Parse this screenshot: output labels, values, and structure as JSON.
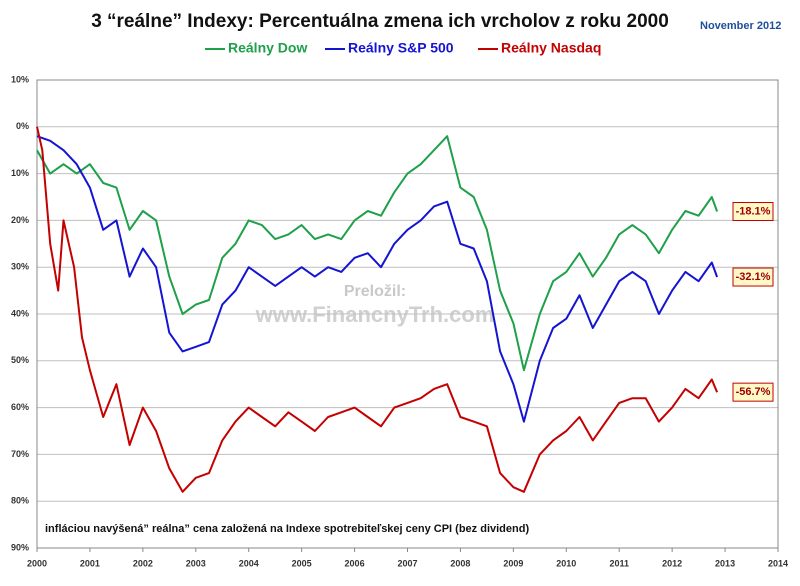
{
  "chart_data": {
    "type": "line",
    "title": "3 “reálne” Indexy: Percentuálna zmena ich vrcholov z roku 2000",
    "subtitle": "November 2012",
    "annotations": [
      "Preložil:",
      "www.FinancnyTrh.com",
      "infláciou navýšená” reálna” cena založená na Indexe spotrebiteľskej ceny CPI (bez dividend)"
    ],
    "xlim": [
      2000,
      2014
    ],
    "xticks": [
      2000,
      2001,
      2002,
      2003,
      2004,
      2005,
      2006,
      2007,
      2008,
      2009,
      2010,
      2011,
      2012,
      2013,
      2014
    ],
    "ylim": [
      -90,
      10
    ],
    "yticks": [
      {
        "value": 10,
        "label": "10%"
      },
      {
        "value": 0,
        "label": "0%"
      },
      {
        "value": -10,
        "label": "10%"
      },
      {
        "value": -20,
        "label": "20%"
      },
      {
        "value": -30,
        "label": "30%"
      },
      {
        "value": -40,
        "label": "40%"
      },
      {
        "value": -50,
        "label": "50%"
      },
      {
        "value": -60,
        "label": "60%"
      },
      {
        "value": -70,
        "label": "70%"
      },
      {
        "value": -80,
        "label": "80%"
      },
      {
        "value": -90,
        "label": "90%"
      }
    ],
    "grid": true,
    "series": [
      {
        "name": "Reálny Dow",
        "color": "#1fa04a",
        "last_label": "-18.1%",
        "x": [
          2000,
          2000.25,
          2000.5,
          2000.75,
          2001,
          2001.25,
          2001.5,
          2001.75,
          2002,
          2002.25,
          2002.5,
          2002.75,
          2003,
          2003.25,
          2003.5,
          2003.75,
          2004,
          2004.25,
          2004.5,
          2004.75,
          2005,
          2005.25,
          2005.5,
          2005.75,
          2006,
          2006.25,
          2006.5,
          2006.75,
          2007,
          2007.25,
          2007.5,
          2007.75,
          2008,
          2008.25,
          2008.5,
          2008.75,
          2009,
          2009.2,
          2009.5,
          2009.75,
          2010,
          2010.25,
          2010.5,
          2010.75,
          2011,
          2011.25,
          2011.5,
          2011.75,
          2012,
          2012.25,
          2012.5,
          2012.75,
          2012.85
        ],
        "values": [
          -5,
          -10,
          -8,
          -10,
          -8,
          -12,
          -13,
          -22,
          -18,
          -20,
          -32,
          -40,
          -38,
          -37,
          -28,
          -25,
          -20,
          -21,
          -24,
          -23,
          -21,
          -24,
          -23,
          -24,
          -20,
          -18,
          -19,
          -14,
          -10,
          -8,
          -5,
          -2,
          -13,
          -15,
          -22,
          -35,
          -42,
          -52,
          -40,
          -33,
          -31,
          -27,
          -32,
          -28,
          -23,
          -21,
          -23,
          -27,
          -22,
          -18,
          -19,
          -15,
          -18.1
        ]
      },
      {
        "name": "Reálny S&P 500",
        "color": "#1414d2",
        "last_label": "-32.1%",
        "x": [
          2000,
          2000.25,
          2000.5,
          2000.75,
          2001,
          2001.25,
          2001.5,
          2001.75,
          2002,
          2002.25,
          2002.5,
          2002.75,
          2003,
          2003.25,
          2003.5,
          2003.75,
          2004,
          2004.25,
          2004.5,
          2004.75,
          2005,
          2005.25,
          2005.5,
          2005.75,
          2006,
          2006.25,
          2006.5,
          2006.75,
          2007,
          2007.25,
          2007.5,
          2007.75,
          2008,
          2008.25,
          2008.5,
          2008.75,
          2009,
          2009.2,
          2009.5,
          2009.75,
          2010,
          2010.25,
          2010.5,
          2010.75,
          2011,
          2011.25,
          2011.5,
          2011.75,
          2012,
          2012.25,
          2012.5,
          2012.75,
          2012.85
        ],
        "values": [
          -2,
          -3,
          -5,
          -8,
          -13,
          -22,
          -20,
          -32,
          -26,
          -30,
          -44,
          -48,
          -47,
          -46,
          -38,
          -35,
          -30,
          -32,
          -34,
          -32,
          -30,
          -32,
          -30,
          -31,
          -28,
          -27,
          -30,
          -25,
          -22,
          -20,
          -17,
          -16,
          -25,
          -26,
          -33,
          -48,
          -55,
          -63,
          -50,
          -43,
          -41,
          -36,
          -43,
          -38,
          -33,
          -31,
          -33,
          -40,
          -35,
          -31,
          -33,
          -29,
          -32.1
        ]
      },
      {
        "name": "Reálny Nasdaq",
        "color": "#c40000",
        "last_label": "-56.7%",
        "x": [
          2000,
          2000.1,
          2000.25,
          2000.4,
          2000.5,
          2000.7,
          2000.85,
          2001,
          2001.25,
          2001.5,
          2001.75,
          2002,
          2002.25,
          2002.5,
          2002.75,
          2003,
          2003.25,
          2003.5,
          2003.75,
          2004,
          2004.25,
          2004.5,
          2004.75,
          2005,
          2005.25,
          2005.5,
          2005.75,
          2006,
          2006.25,
          2006.5,
          2006.75,
          2007,
          2007.25,
          2007.5,
          2007.75,
          2008,
          2008.25,
          2008.5,
          2008.75,
          2009,
          2009.2,
          2009.5,
          2009.75,
          2010,
          2010.25,
          2010.5,
          2010.75,
          2011,
          2011.25,
          2011.5,
          2011.75,
          2012,
          2012.25,
          2012.5,
          2012.75,
          2012.85
        ],
        "values": [
          0,
          -5,
          -25,
          -35,
          -20,
          -30,
          -45,
          -52,
          -62,
          -55,
          -68,
          -60,
          -65,
          -73,
          -78,
          -75,
          -74,
          -67,
          -63,
          -60,
          -62,
          -64,
          -61,
          -63,
          -65,
          -62,
          -61,
          -60,
          -62,
          -64,
          -60,
          -59,
          -58,
          -56,
          -55,
          -62,
          -63,
          -64,
          -74,
          -77,
          -78,
          -70,
          -67,
          -65,
          -62,
          -67,
          -63,
          -59,
          -58,
          -58,
          -63,
          -60,
          -56,
          -58,
          -54,
          -56.7
        ]
      }
    ]
  }
}
